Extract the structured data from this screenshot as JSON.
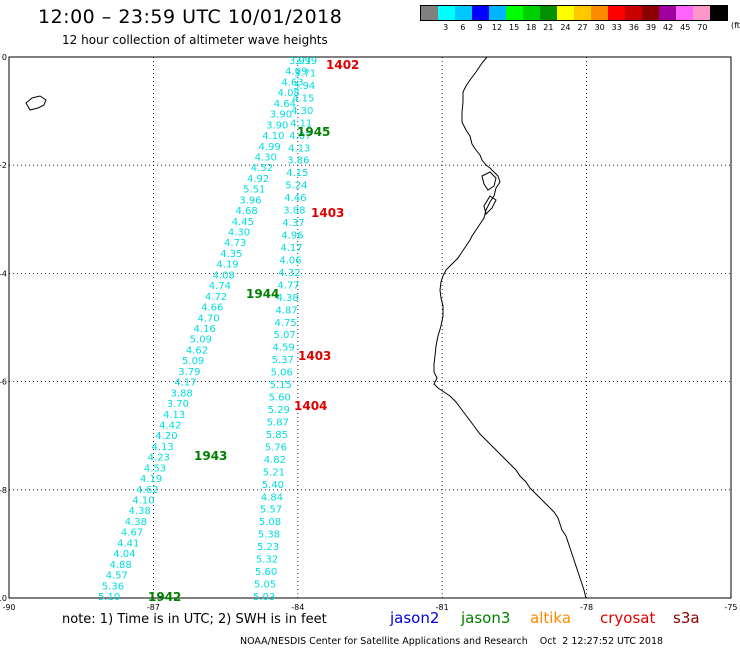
{
  "header": {
    "title": "12:00 – 23:59 UTC 10/01/2018",
    "subtitle": "12 hour collection of altimeter wave heights"
  },
  "legend": {
    "colors": [
      "#808080",
      "#00ffff",
      "#00c8ff",
      "#0000ff",
      "#00b4ff",
      "#00ff00",
      "#00d000",
      "#009000",
      "#ffff00",
      "#ffc800",
      "#ff8c00",
      "#ff0000",
      "#c80000",
      "#8c0000",
      "#a000a0",
      "#ff64ff",
      "#ff96c8",
      "#000000"
    ],
    "labels": [
      "3",
      "6",
      "9",
      "12",
      "15",
      "18",
      "21",
      "24",
      "27",
      "30",
      "33",
      "36",
      "39",
      "42",
      "45",
      "70"
    ],
    "unit": "(ft)"
  },
  "map": {
    "x_ticks": [
      "-90",
      "-87",
      "-84",
      "-81",
      "-78",
      "-75"
    ],
    "y_ticks": [
      "0",
      "-2",
      "-4",
      "-6",
      "-8",
      "-10"
    ],
    "track_color": "#00dede",
    "tracks": [
      {
        "name": "track-left",
        "values": [
          "3.91",
          "4.09",
          "4.63",
          "4.08",
          "4.64",
          "3.90",
          "3.90",
          "4.10",
          "4.99",
          "4.30",
          "4.52",
          "4.92",
          "5.51",
          "3.96",
          "4.68",
          "4.45",
          "4.30",
          "4.73",
          "4.35",
          "4.19",
          "4.08",
          "4.74",
          "4.72",
          "4.66",
          "4.70",
          "4.16",
          "5.09",
          "4.62",
          "5.09",
          "3.79",
          "4.17",
          "3.88",
          "3.70",
          "4.13",
          "4.42",
          "4.20",
          "4.13",
          "4.23",
          "4.53",
          "4.19",
          "4.62",
          "4.10",
          "4.38",
          "4.38",
          "4.67",
          "4.41",
          "4.04",
          "4.88",
          "4.57",
          "5.36",
          "5.10"
        ]
      },
      {
        "name": "track-right",
        "values": [
          "3.99",
          "3.71",
          "3.94",
          "4.15",
          "4.30",
          "4.11",
          "4.07",
          "4.13",
          "3.86",
          "4.15",
          "5.24",
          "4.46",
          "3.88",
          "4.37",
          "4.96",
          "4.17",
          "4.06",
          "4.32",
          "4.77",
          "4.38",
          "4.87",
          "4.75",
          "5.07",
          "4.59",
          "5.37",
          "5.06",
          "5.15",
          "5.60",
          "5.29",
          "5.87",
          "5.85",
          "5.76",
          "4.82",
          "5.21",
          "5.40",
          "4.84",
          "5.57",
          "5.08",
          "5.38",
          "5.23",
          "5.32",
          "5.60",
          "5.05",
          "5.03"
        ]
      }
    ],
    "time_labels": [
      {
        "text": "1402",
        "color": "#e00000"
      },
      {
        "text": "1945",
        "color": "#008000"
      },
      {
        "text": "1403",
        "color": "#e00000"
      },
      {
        "text": "1944",
        "color": "#008000"
      },
      {
        "text": "1403",
        "color": "#e00000"
      },
      {
        "text": "1404",
        "color": "#e00000"
      },
      {
        "text": "1943",
        "color": "#008000"
      },
      {
        "text": "1942",
        "color": "#008000"
      }
    ]
  },
  "footer": {
    "note": "note:  1) Time is in UTC;  2) SWH is in feet",
    "satellites": [
      {
        "name": "jason2",
        "color": "#0000e0"
      },
      {
        "name": "jason3",
        "color": "#008000"
      },
      {
        "name": "altika",
        "color": "#ff8c00"
      },
      {
        "name": "cryosat",
        "color": "#e00000"
      },
      {
        "name": "s3a",
        "color": "#8c0000"
      }
    ],
    "credit": "NOAA/NESDIS Center for Satellite Applications and Research    Oct  2 12:27:52 UTC 2018"
  }
}
